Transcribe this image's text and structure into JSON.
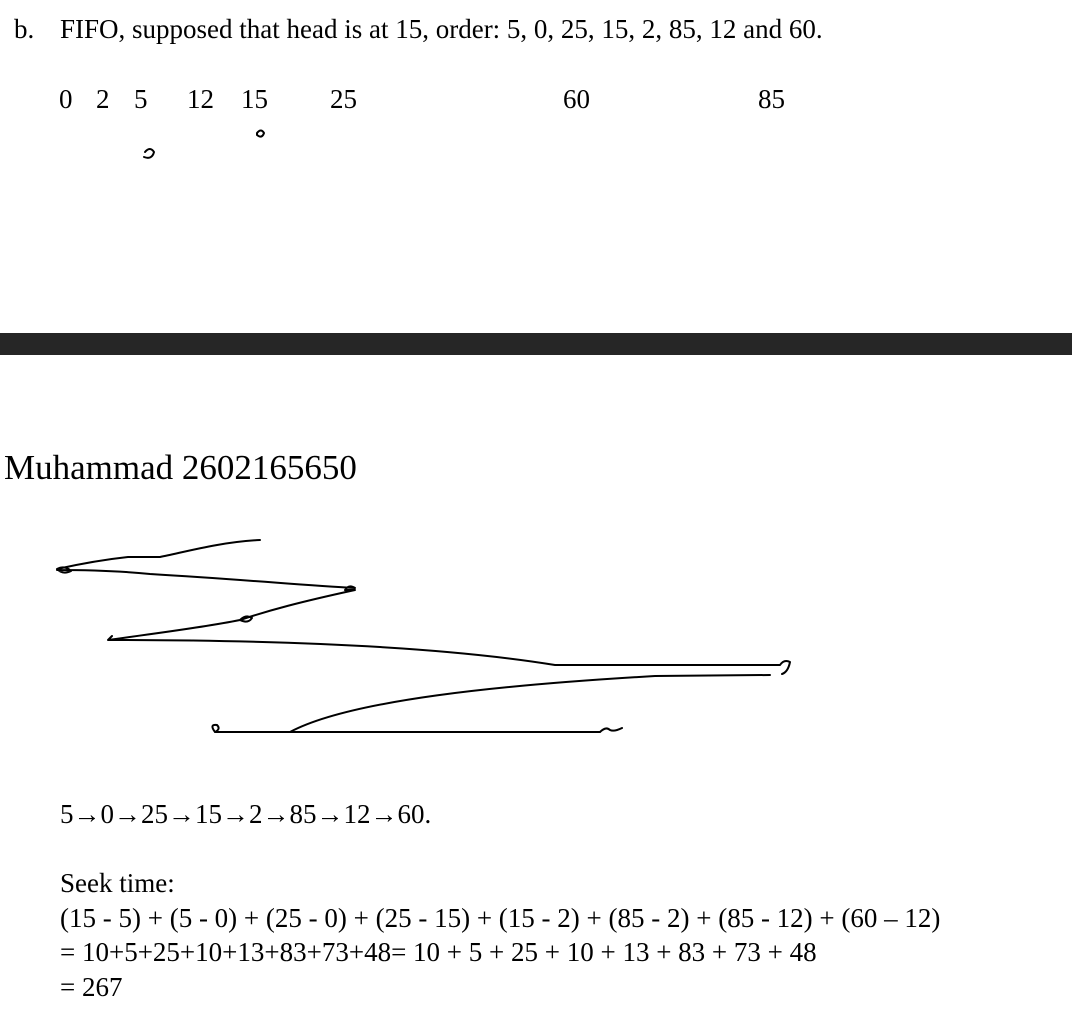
{
  "question": {
    "label": "b.",
    "text": "FIFO, supposed that head is at 15, order: 5, 0, 25, 15, 2, 85, 12 and 60."
  },
  "scale": [
    "0",
    "2",
    "5",
    "12",
    "15",
    "25",
    "60",
    "85"
  ],
  "author": "Muhammad 2602165650",
  "sequence": "5→0→25→15→2→85→12→60.",
  "seek": {
    "heading": "Seek time:",
    "lines": [
      "(15 - 5) + (5 - 0) + (25 - 0) + (25 - 15) + (15 - 2) + (85 - 2) + (85 - 12) + (60 – 12)",
      "= 10+5+25+10+13+83+73+48= 10 + 5 + 25 + 10 + 13 + 83 + 73 + 48",
      "= 267"
    ]
  }
}
